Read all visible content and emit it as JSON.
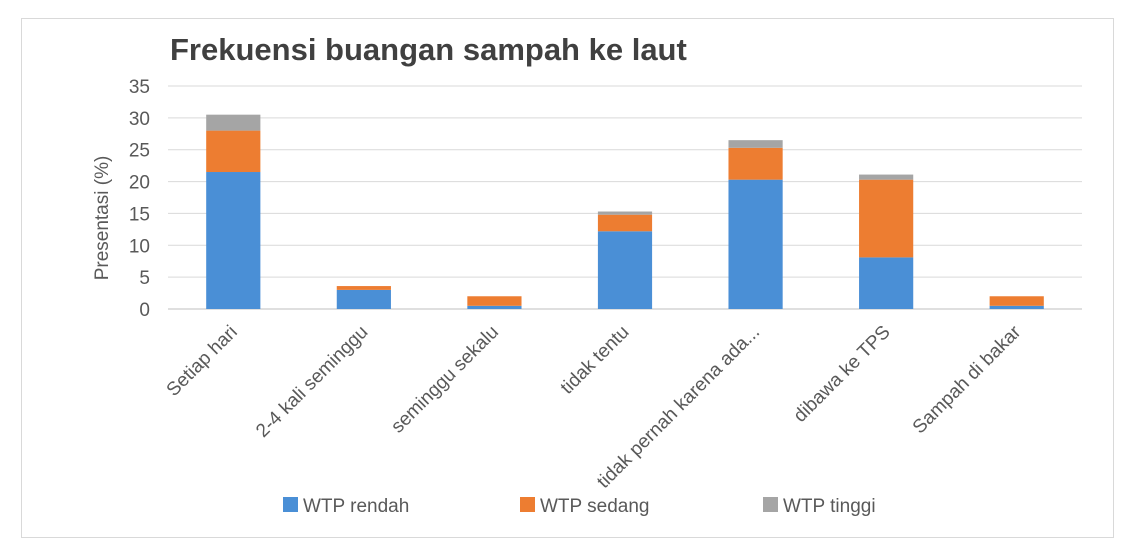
{
  "chart_data": {
    "type": "bar",
    "stacked": true,
    "title": "Frekuensi buangan sampah ke laut",
    "xlabel": "",
    "ylabel": "Presentasi (%)",
    "ylim": [
      0,
      35
    ],
    "yticks": [
      0,
      5,
      10,
      15,
      20,
      25,
      30,
      35
    ],
    "grid": true,
    "legend_position": "bottom",
    "categories": [
      "Setiap hari",
      "2-4 kali seminggu",
      "seminggu sekalu",
      "tidak tentu",
      "tidak pernah karena ada...",
      "dibawa ke TPS",
      "Sampah di bakar"
    ],
    "series": [
      {
        "name": "WTP rendah",
        "color": "#4a8fd6",
        "values": [
          21.5,
          3.0,
          0.5,
          12.2,
          20.3,
          8.1,
          0.5
        ]
      },
      {
        "name": "WTP sedang",
        "color": "#ed7d31",
        "values": [
          6.5,
          0.6,
          1.5,
          2.6,
          5.0,
          12.2,
          1.5
        ]
      },
      {
        "name": "WTP tinggi",
        "color": "#a5a5a5",
        "values": [
          2.5,
          0.0,
          0.0,
          0.5,
          1.2,
          0.8,
          0.0
        ]
      }
    ]
  }
}
